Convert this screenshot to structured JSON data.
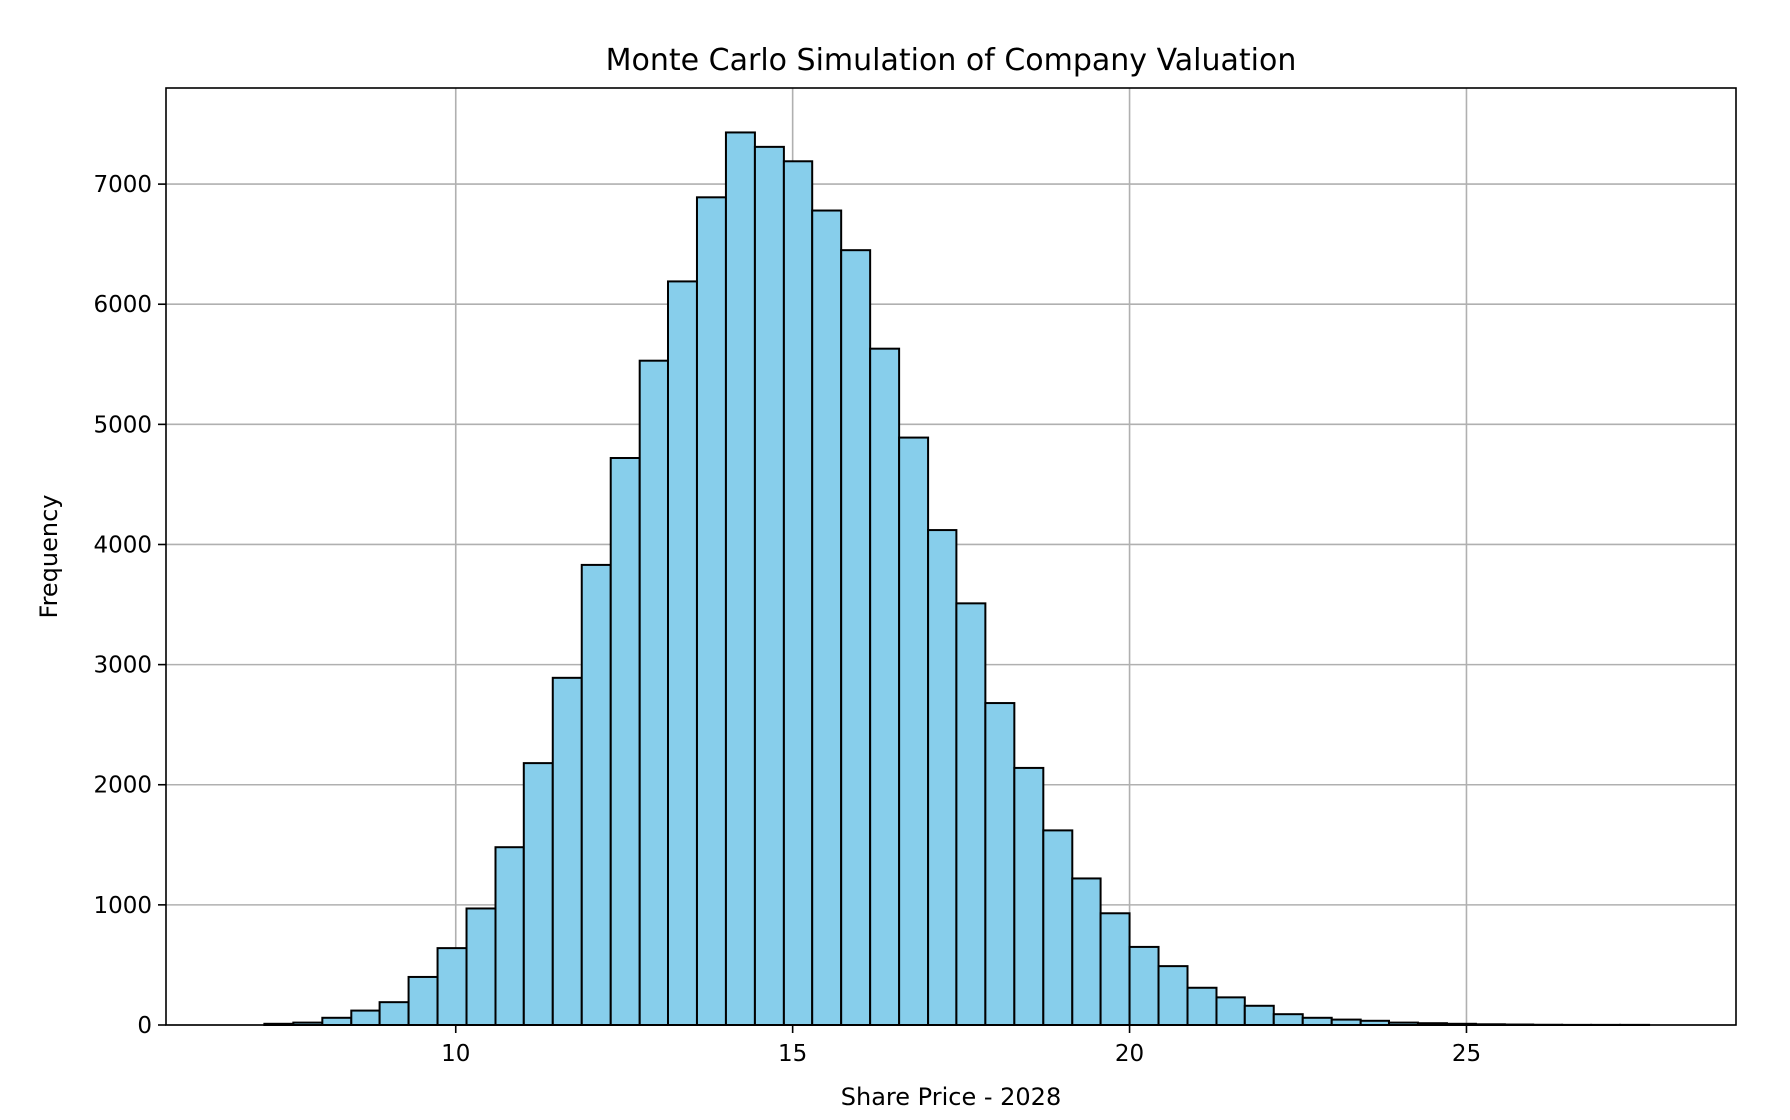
{
  "chart_data": {
    "type": "bar",
    "title": "Monte Carlo Simulation of Company Valuation",
    "xlabel": "Share Price - 2028",
    "ylabel": "Frequency",
    "xlim": [
      5.7,
      29.0
    ],
    "ylim": [
      0,
      7800
    ],
    "grid": true,
    "x_ticks": [
      10,
      15,
      20,
      25
    ],
    "y_ticks": [
      0,
      1000,
      2000,
      3000,
      4000,
      5000,
      6000,
      7000
    ],
    "bar_color": "#87ceeb",
    "edge_color": "#000000",
    "bin_edges": [
      7.16,
      7.59,
      8.02,
      8.45,
      8.87,
      9.3,
      9.73,
      10.16,
      10.59,
      11.01,
      11.44,
      11.87,
      12.3,
      12.73,
      13.15,
      13.58,
      14.01,
      14.44,
      14.87,
      15.29,
      15.72,
      16.15,
      16.58,
      17.01,
      17.43,
      17.86,
      18.29,
      18.72,
      19.15,
      19.57,
      20.0,
      20.43,
      20.86,
      21.29,
      21.71,
      22.14,
      22.57,
      23.0,
      23.43,
      23.85,
      24.28,
      24.71,
      25.14,
      25.57,
      25.99,
      26.42,
      26.85,
      27.28,
      27.71
    ],
    "values": [
      10,
      20,
      60,
      120,
      190,
      400,
      640,
      970,
      1480,
      2180,
      2890,
      3830,
      4720,
      5530,
      6190,
      6890,
      7430,
      7310,
      7190,
      6780,
      6450,
      5630,
      4890,
      4120,
      3510,
      2680,
      2140,
      1620,
      1220,
      930,
      650,
      490,
      310,
      230,
      160,
      90,
      60,
      45,
      35,
      20,
      15,
      10,
      6,
      4,
      2,
      1,
      1,
      1
    ]
  }
}
